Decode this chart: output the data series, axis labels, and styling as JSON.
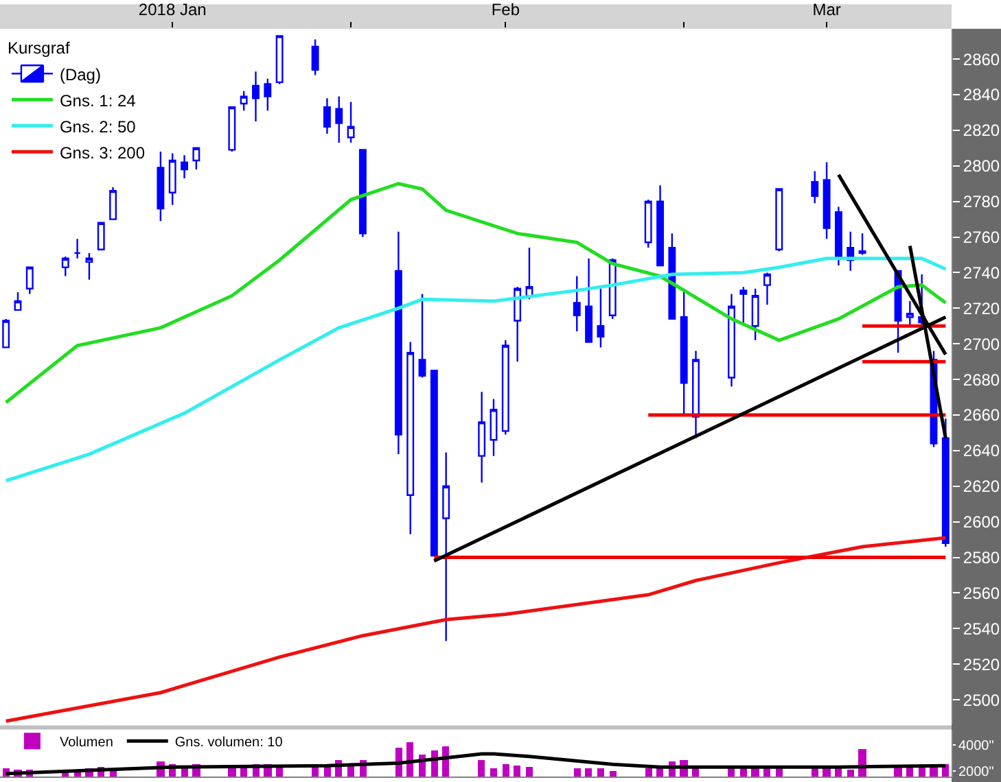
{
  "chart_data": [
    {
      "type": "candlestick",
      "legend": "top left",
      "legend_title": "Kursgraf",
      "grid": false,
      "tick_labels": "xy",
      "x": [
        "2018-01-03",
        "2018-01-04",
        "2018-01-05",
        "2018-01-08",
        "2018-01-09",
        "2018-01-10",
        "2018-01-11",
        "2018-01-12",
        "2018-01-16",
        "2018-01-17",
        "2018-01-18",
        "2018-01-19",
        "2018-01-22",
        "2018-01-23",
        "2018-01-24",
        "2018-01-25",
        "2018-01-26",
        "2018-01-29",
        "2018-01-30",
        "2018-01-31",
        "2018-02-01",
        "2018-02-02",
        "2018-02-05",
        "2018-02-06",
        "2018-02-07",
        "2018-02-08",
        "2018-02-09",
        "2018-02-12",
        "2018-02-13",
        "2018-02-14",
        "2018-02-15",
        "2018-02-16",
        "2018-02-20",
        "2018-02-21",
        "2018-02-22",
        "2018-02-23",
        "2018-02-26",
        "2018-02-27",
        "2018-02-28",
        "2018-03-01",
        "2018-03-02",
        "2018-03-05",
        "2018-03-06",
        "2018-03-07",
        "2018-03-08",
        "2018-03-09",
        "2018-03-12",
        "2018-03-13",
        "2018-03-14",
        "2018-03-15",
        "2018-03-16",
        "2018-03-19",
        "2018-03-20",
        "2018-03-21",
        "2018-03-22",
        "2018-03-23"
      ],
      "xlim": [
        "2018-01-02T12:00",
        "2018-03-23T12:00"
      ],
      "xticks": [
        {
          "value": "2018-01-17",
          "label": "2018 Jan"
        },
        {
          "value": "2018-02-01",
          "label": null
        },
        {
          "value": "2018-02-14",
          "label": "Feb"
        },
        {
          "value": "2018-03-01",
          "label": null
        },
        {
          "value": "2018-03-13",
          "label": "Mar"
        }
      ],
      "ylim": [
        2486,
        2877
      ],
      "yticks": [
        2500,
        2520,
        2540,
        2560,
        2580,
        2600,
        2620,
        2640,
        2660,
        2680,
        2700,
        2720,
        2740,
        2760,
        2780,
        2800,
        2820,
        2840,
        2860
      ],
      "series": [
        {
          "name": "(Dag)",
          "color": "#0000ff",
          "ohlc": [
            [
              2698,
              2714,
              2698,
              2713
            ],
            [
              2719,
              2729,
              2719,
              2724
            ],
            [
              2731,
              2743,
              2728,
              2743
            ],
            [
              2743,
              2749,
              2738,
              2748
            ],
            [
              2751,
              2759,
              2748,
              2751
            ],
            [
              2746,
              2751,
              2736,
              2748
            ],
            [
              2753,
              2768,
              2753,
              2768
            ],
            [
              2770,
              2788,
              2770,
              2786
            ],
            [
              2799,
              2808,
              2769,
              2776
            ],
            [
              2785,
              2807,
              2778,
              2803
            ],
            [
              2802,
              2806,
              2793,
              2798
            ],
            [
              2803,
              2810,
              2798,
              2810
            ],
            [
              2809,
              2833,
              2808,
              2833
            ],
            [
              2835,
              2842,
              2831,
              2839
            ],
            [
              2845,
              2853,
              2825,
              2838
            ],
            [
              2846,
              2849,
              2831,
              2839
            ],
            [
              2847,
              2873,
              2846,
              2873
            ],
            [
              2867,
              2871,
              2851,
              2854
            ],
            [
              2833,
              2838,
              2818,
              2822
            ],
            [
              2832,
              2839,
              2813,
              2824
            ],
            [
              2816,
              2836,
              2813,
              2822
            ],
            [
              2809,
              2809,
              2760,
              2762
            ],
            [
              2741,
              2763,
              2638,
              2649
            ],
            [
              2615,
              2701,
              2593,
              2695
            ],
            [
              2691,
              2728,
              2681,
              2682
            ],
            [
              2685,
              2685,
              2581,
              2581
            ],
            [
              2602,
              2639,
              2533,
              2620
            ],
            [
              2637,
              2673,
              2622,
              2656
            ],
            [
              2646,
              2669,
              2637,
              2663
            ],
            [
              2651,
              2702,
              2649,
              2699
            ],
            [
              2713,
              2732,
              2690,
              2731
            ],
            [
              2727,
              2754,
              2725,
              2732
            ],
            [
              2723,
              2738,
              2707,
              2716
            ],
            [
              2721,
              2748,
              2701,
              2701
            ],
            [
              2710,
              2731,
              2698,
              2704
            ],
            [
              2716,
              2748,
              2714,
              2747
            ],
            [
              2757,
              2781,
              2754,
              2780
            ],
            [
              2780,
              2789,
              2744,
              2744
            ],
            [
              2754,
              2762,
              2714,
              2714
            ],
            [
              2715,
              2731,
              2660,
              2678
            ],
            [
              2659,
              2696,
              2647,
              2691
            ],
            [
              2681,
              2728,
              2676,
              2721
            ],
            [
              2730,
              2732,
              2711,
              2728
            ],
            [
              2710,
              2731,
              2702,
              2727
            ],
            [
              2733,
              2740,
              2722,
              2739
            ],
            [
              2753,
              2787,
              2752,
              2787
            ],
            [
              2791,
              2797,
              2779,
              2783
            ],
            [
              2792,
              2802,
              2759,
              2765
            ],
            [
              2774,
              2777,
              2744,
              2749
            ],
            [
              2754,
              2763,
              2741,
              2747
            ],
            [
              2751,
              2762,
              2750,
              2752
            ],
            [
              2741,
              2741,
              2695,
              2713
            ],
            [
              2715,
              2724,
              2710,
              2717
            ],
            [
              2715,
              2739,
              2710,
              2712
            ],
            [
              2691,
              2696,
              2642,
              2644
            ],
            [
              2647,
              2658,
              2586,
              2588
            ]
          ]
        },
        {
          "type": "line",
          "name": "Gns. 1: 24",
          "color": "#22dd22",
          "x": [
            "2018-01-03",
            "2018-01-09",
            "2018-01-16",
            "2018-01-22",
            "2018-01-26",
            "2018-02-01",
            "2018-02-05",
            "2018-02-07",
            "2018-02-09",
            "2018-02-15",
            "2018-02-20",
            "2018-02-23",
            "2018-02-27",
            "2018-02-28",
            "2018-03-05",
            "2018-03-09",
            "2018-03-14",
            "2018-03-19",
            "2018-03-21",
            "2018-03-23"
          ],
          "values": [
            2667,
            2699,
            2709,
            2727,
            2747,
            2781,
            2790,
            2787,
            2775,
            2762,
            2757,
            2745,
            2738,
            2734,
            2714,
            2702,
            2714,
            2732,
            2733,
            2723
          ]
        },
        {
          "type": "line",
          "name": "Gns. 2: 50",
          "color": "#33eeee",
          "x": [
            "2018-01-03",
            "2018-01-10",
            "2018-01-18",
            "2018-01-26",
            "2018-01-31",
            "2018-02-05",
            "2018-02-07",
            "2018-02-13",
            "2018-02-20",
            "2018-02-23",
            "2018-02-28",
            "2018-03-06",
            "2018-03-09",
            "2018-03-13",
            "2018-03-21",
            "2018-03-23"
          ],
          "values": [
            2623,
            2638,
            2661,
            2691,
            2709,
            2720,
            2725,
            2724,
            2730,
            2733,
            2739,
            2740,
            2743,
            2748,
            2748,
            2742
          ]
        },
        {
          "type": "line",
          "name": "Gns. 3: 200",
          "color": "#ee1111",
          "x": [
            "2018-01-03",
            "2018-01-16",
            "2018-01-26",
            "2018-02-02",
            "2018-02-09",
            "2018-02-14",
            "2018-02-26",
            "2018-03-02",
            "2018-03-09",
            "2018-03-16",
            "2018-03-23"
          ],
          "values": [
            2488,
            2504,
            2524,
            2536,
            2545,
            2548,
            2559,
            2567,
            2577,
            2586,
            2591
          ]
        },
        {
          "type": "line",
          "color": "#ee0000",
          "x": [
            "2018-02-08",
            "2018-03-23"
          ],
          "values": [
            2580,
            2580
          ]
        },
        {
          "type": "line",
          "color": "#ee0000",
          "x": [
            "2018-02-26",
            "2018-03-23"
          ],
          "values": [
            2660,
            2660
          ]
        },
        {
          "type": "line",
          "color": "#ee0000",
          "x": [
            "2018-03-16",
            "2018-03-23"
          ],
          "values": [
            2690,
            2690
          ]
        },
        {
          "type": "line",
          "color": "#ee0000",
          "x": [
            "2018-03-16",
            "2018-03-23"
          ],
          "values": [
            2710,
            2710
          ]
        },
        {
          "type": "line",
          "color": "#000000",
          "x": [
            "2018-02-08",
            "2018-03-23"
          ],
          "values": [
            2578,
            2715
          ]
        },
        {
          "type": "line",
          "color": "#000000",
          "x": [
            "2018-03-14",
            "2018-03-23"
          ],
          "values": [
            2795,
            2694
          ]
        },
        {
          "type": "line",
          "color": "#000000",
          "x": [
            "2018-03-20",
            "2018-03-23"
          ],
          "values": [
            2755,
            2647
          ]
        }
      ]
    },
    {
      "type": "bar",
      "legend": "top left",
      "grid": false,
      "tick_labels": "y",
      "x": [
        "2018-01-03",
        "2018-01-04",
        "2018-01-05",
        "2018-01-08",
        "2018-01-09",
        "2018-01-10",
        "2018-01-11",
        "2018-01-12",
        "2018-01-16",
        "2018-01-17",
        "2018-01-18",
        "2018-01-19",
        "2018-01-22",
        "2018-01-23",
        "2018-01-24",
        "2018-01-25",
        "2018-01-26",
        "2018-01-29",
        "2018-01-30",
        "2018-01-31",
        "2018-02-01",
        "2018-02-02",
        "2018-02-05",
        "2018-02-06",
        "2018-02-07",
        "2018-02-08",
        "2018-02-09",
        "2018-02-12",
        "2018-02-13",
        "2018-02-14",
        "2018-02-15",
        "2018-02-16",
        "2018-02-20",
        "2018-02-21",
        "2018-02-22",
        "2018-02-23",
        "2018-02-26",
        "2018-02-27",
        "2018-02-28",
        "2018-03-01",
        "2018-03-02",
        "2018-03-05",
        "2018-03-06",
        "2018-03-07",
        "2018-03-08",
        "2018-03-09",
        "2018-03-12",
        "2018-03-13",
        "2018-03-14",
        "2018-03-15",
        "2018-03-16",
        "2018-03-19",
        "2018-03-20",
        "2018-03-21",
        "2018-03-22",
        "2018-03-23"
      ],
      "xlim": [
        "2018-01-02T12:00",
        "2018-03-23T12:00"
      ],
      "ylim": [
        1580,
        5100
      ],
      "yticks": [
        {
          "value": 2000,
          "label": "2000\""
        },
        {
          "value": 4000,
          "label": "4000\""
        }
      ],
      "series": [
        {
          "name": "Volumen",
          "color": "#c000c0",
          "values": [
            2200,
            2100,
            2100,
            2100,
            2100,
            2200,
            2300,
            2100,
            2700,
            2500,
            2400,
            2500,
            2400,
            2400,
            2500,
            2500,
            2400,
            2500,
            2500,
            2800,
            2500,
            2800,
            3700,
            4200,
            3200,
            3500,
            3800,
            2800,
            2200,
            2500,
            2400,
            2300,
            2200,
            2200,
            2200,
            2000,
            2200,
            2300,
            2700,
            2800,
            2300,
            2300,
            2300,
            2300,
            2300,
            2300,
            2300,
            2300,
            2300,
            2100,
            3600,
            2300,
            2300,
            2300,
            2500,
            2500
          ]
        },
        {
          "type": "line",
          "name": "Gns. volumen: 10",
          "color": "#000000",
          "x": [
            "2018-01-03",
            "2018-01-17",
            "2018-01-30",
            "2018-02-05",
            "2018-02-12",
            "2018-02-13",
            "2018-02-16",
            "2018-02-23",
            "2018-02-27",
            "2018-03-14",
            "2018-03-23"
          ],
          "values": [
            1800,
            2300,
            2400,
            2600,
            3300,
            3300,
            3100,
            2500,
            2300,
            2300,
            2400
          ]
        }
      ]
    }
  ]
}
